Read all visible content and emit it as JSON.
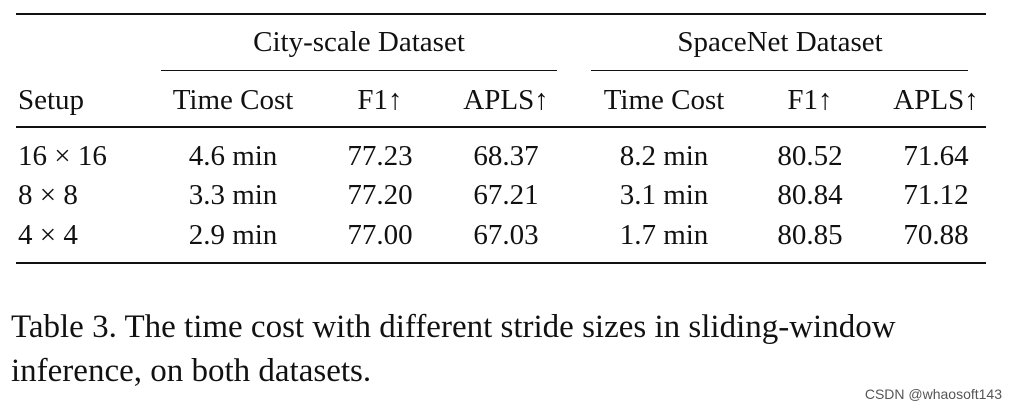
{
  "table": {
    "group_headers": [
      "City-scale Dataset",
      "SpaceNet Dataset"
    ],
    "columns": [
      "Setup",
      "Time Cost",
      "F1↑",
      "APLS↑",
      "Time Cost",
      "F1↑",
      "APLS↑"
    ],
    "rows": [
      [
        "16 × 16",
        "4.6 min",
        "77.23",
        "68.37",
        "8.2 min",
        "80.52",
        "71.64"
      ],
      [
        "8 × 8",
        "3.3 min",
        "77.20",
        "67.21",
        "3.1 min",
        "80.84",
        "71.12"
      ],
      [
        "4 × 4",
        "2.9 min",
        "77.00",
        "67.03",
        "1.7 min",
        "80.85",
        "70.88"
      ]
    ]
  },
  "caption": {
    "line1": "Table 3. The time cost with different stride sizes in sliding-window",
    "line2": "inference, on both datasets."
  },
  "watermark": "CSDN @whaosoft143"
}
